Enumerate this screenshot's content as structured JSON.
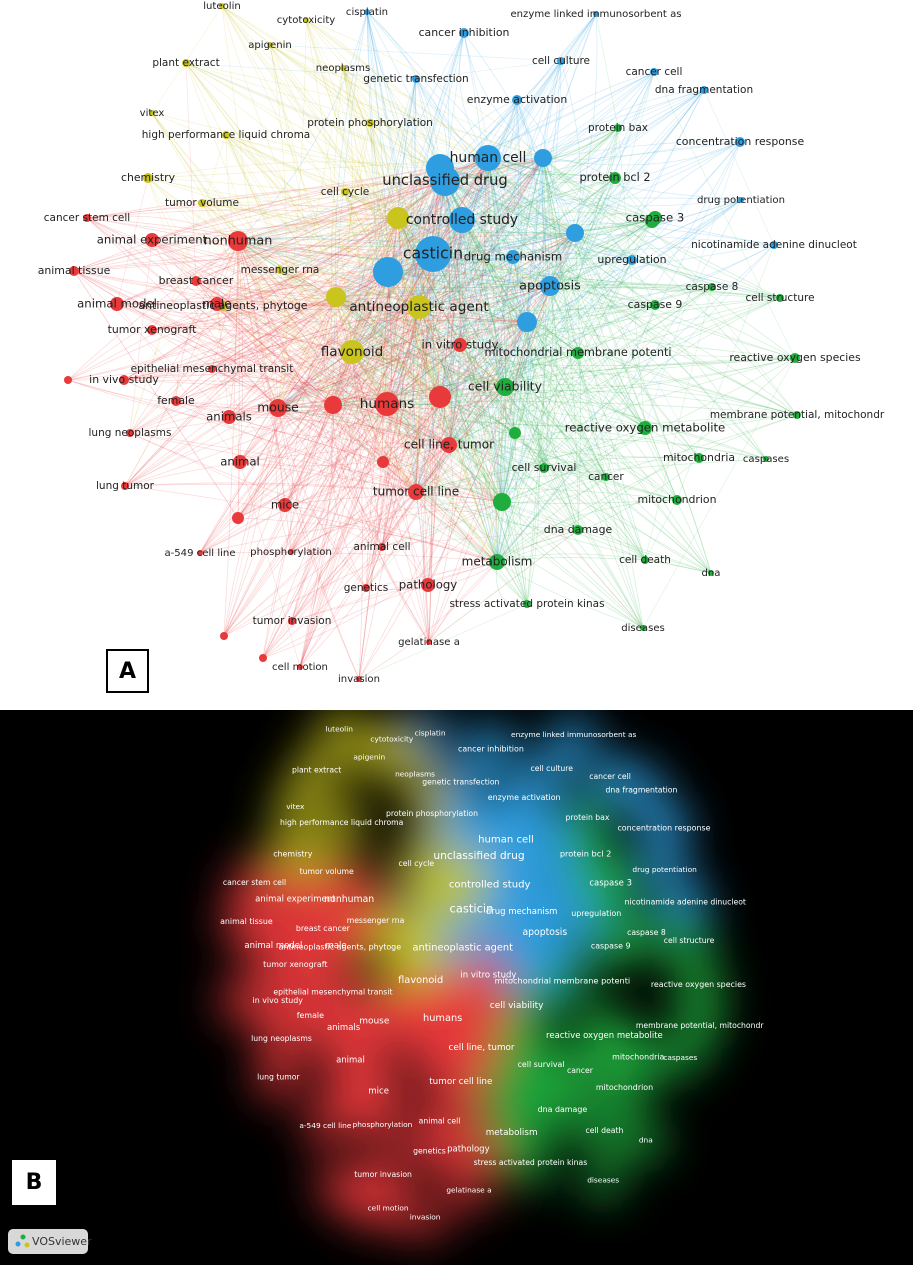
{
  "panel_a": {
    "label": "A"
  },
  "panel_b": {
    "label": "B",
    "logo": "VOSviewer"
  },
  "nodes": [
    {
      "label": "luteolin",
      "color": "#c9c41e"
    },
    {
      "label": "cytotoxicity",
      "color": "#c9c41e"
    },
    {
      "label": "apigenin",
      "color": "#c9c41e"
    },
    {
      "label": "plant extract",
      "color": "#c9c41e"
    },
    {
      "label": "neoplasms",
      "color": "#c9c41e"
    },
    {
      "label": "vitex",
      "color": "#c9c41e"
    },
    {
      "label": "high performance liquid chroma",
      "color": "#c9c41e"
    },
    {
      "label": "chemistry",
      "color": "#c9c41e"
    },
    {
      "label": "tumor volume",
      "color": "#c9c41e"
    },
    {
      "label": "cell cycle",
      "color": "#c9c41e"
    },
    {
      "label": "protein phosphorylation",
      "color": "#c9c41e"
    },
    {
      "label": "messenger rna",
      "color": "#c9c41e"
    },
    {
      "label": "antineoplastic agents, phytoge",
      "color": "#c9c41e"
    },
    {
      "label": "flavonoid",
      "color": "#c9c41e"
    },
    {
      "label": "antineoplastic agent",
      "color": "#c9c41e"
    },
    {
      "label": "cisplatin",
      "color": "#2f9ee0"
    },
    {
      "label": "enzyme linked immunosorbent as",
      "color": "#2f9ee0"
    },
    {
      "label": "cancer inhibition",
      "color": "#2f9ee0"
    },
    {
      "label": "genetic transfection",
      "color": "#2f9ee0"
    },
    {
      "label": "cell culture",
      "color": "#2f9ee0"
    },
    {
      "label": "cancer cell",
      "color": "#2f9ee0"
    },
    {
      "label": "dna fragmentation",
      "color": "#2f9ee0"
    },
    {
      "label": "enzyme activation",
      "color": "#2f9ee0"
    },
    {
      "label": "human cell",
      "color": "#2f9ee0"
    },
    {
      "label": "concentration response",
      "color": "#2f9ee0"
    },
    {
      "label": "drug potentiation",
      "color": "#2f9ee0"
    },
    {
      "label": "unclassified drug",
      "color": "#2f9ee0"
    },
    {
      "label": "controlled study",
      "color": "#2f9ee0"
    },
    {
      "label": "casticin",
      "color": "#2f9ee0"
    },
    {
      "label": "drug mechanism",
      "color": "#2f9ee0"
    },
    {
      "label": "upregulation",
      "color": "#2f9ee0"
    },
    {
      "label": "nicotinamide adenine dinucleot",
      "color": "#2f9ee0"
    },
    {
      "label": "apoptosis",
      "color": "#2f9ee0"
    },
    {
      "label": "protein bax",
      "color": "#1fae3e"
    },
    {
      "label": "protein bcl 2",
      "color": "#1fae3e"
    },
    {
      "label": "caspase 3",
      "color": "#1fae3e"
    },
    {
      "label": "caspase 8",
      "color": "#1fae3e"
    },
    {
      "label": "caspase 9",
      "color": "#1fae3e"
    },
    {
      "label": "cell structure",
      "color": "#1fae3e"
    },
    {
      "label": "mitochondrial membrane potenti",
      "color": "#1fae3e"
    },
    {
      "label": "reactive oxygen species",
      "color": "#1fae3e"
    },
    {
      "label": "cell viability",
      "color": "#1fae3e"
    },
    {
      "label": "membrane potential, mitochondr",
      "color": "#1fae3e"
    },
    {
      "label": "reactive oxygen metabolite",
      "color": "#1fae3e"
    },
    {
      "label": "mitochondria",
      "color": "#1fae3e"
    },
    {
      "label": "caspases",
      "color": "#1fae3e"
    },
    {
      "label": "cell survival",
      "color": "#1fae3e"
    },
    {
      "label": "cancer",
      "color": "#1fae3e"
    },
    {
      "label": "mitochondrion",
      "color": "#1fae3e"
    },
    {
      "label": "dna damage",
      "color": "#1fae3e"
    },
    {
      "label": "cell death",
      "color": "#1fae3e"
    },
    {
      "label": "metabolism",
      "color": "#1fae3e"
    },
    {
      "label": "dna",
      "color": "#1fae3e"
    },
    {
      "label": "stress activated protein kinas",
      "color": "#1fae3e"
    },
    {
      "label": "diseases",
      "color": "#1fae3e"
    },
    {
      "label": "cancer stem cell",
      "color": "#e8393b"
    },
    {
      "label": "animal experiment",
      "color": "#e8393b"
    },
    {
      "label": "nonhuman",
      "color": "#e8393b"
    },
    {
      "label": "animal tissue",
      "color": "#e8393b"
    },
    {
      "label": "breast cancer",
      "color": "#e8393b"
    },
    {
      "label": "animal model",
      "color": "#e8393b"
    },
    {
      "label": "male",
      "color": "#e8393b"
    },
    {
      "label": "tumor xenograft",
      "color": "#e8393b"
    },
    {
      "label": "epithelial mesenchymal transit",
      "color": "#e8393b"
    },
    {
      "label": "in vitro study",
      "color": "#e8393b"
    },
    {
      "label": "in vivo study",
      "color": "#e8393b"
    },
    {
      "label": "female",
      "color": "#e8393b"
    },
    {
      "label": "mouse",
      "color": "#e8393b"
    },
    {
      "label": "animals",
      "color": "#e8393b"
    },
    {
      "label": "humans",
      "color": "#e8393b"
    },
    {
      "label": "lung neoplasms",
      "color": "#e8393b"
    },
    {
      "label": "cell line, tumor",
      "color": "#e8393b"
    },
    {
      "label": "animal",
      "color": "#e8393b"
    },
    {
      "label": "lung tumor",
      "color": "#e8393b"
    },
    {
      "label": "tumor cell line",
      "color": "#e8393b"
    },
    {
      "label": "mice",
      "color": "#e8393b"
    },
    {
      "label": "a-549 cell line",
      "color": "#e8393b"
    },
    {
      "label": "phosphorylation",
      "color": "#e8393b"
    },
    {
      "label": "animal cell",
      "color": "#e8393b"
    },
    {
      "label": "genetics",
      "color": "#e8393b"
    },
    {
      "label": "pathology",
      "color": "#e8393b"
    },
    {
      "label": "tumor invasion",
      "color": "#e8393b"
    },
    {
      "label": "gelatinase a",
      "color": "#e8393b"
    },
    {
      "label": "cell motion",
      "color": "#e8393b"
    },
    {
      "label": "invasion",
      "color": "#e8393b"
    }
  ]
}
